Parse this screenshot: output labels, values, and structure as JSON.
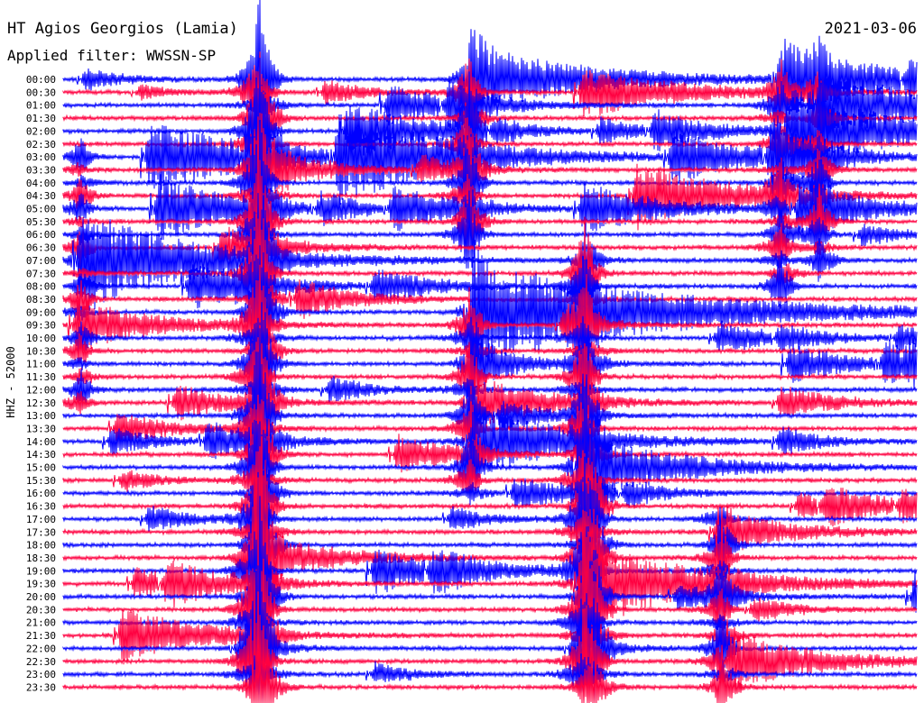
{
  "header": {
    "station": "HT Agios Georgios (Lamia)",
    "filter": "Applied filter: WWSSN-SP",
    "date": "2021-03-06"
  },
  "chart_data": {
    "type": "line",
    "title": "HT Agios Georgios (Lamia)",
    "subtitle": "Applied filter: WWSSN-SP",
    "ylabel": "HHZ - 52000",
    "row_labels": [
      "00:00",
      "00:30",
      "01:00",
      "01:30",
      "02:00",
      "02:30",
      "03:00",
      "03:30",
      "04:00",
      "04:30",
      "05:00",
      "05:30",
      "06:00",
      "06:30",
      "07:00",
      "07:30",
      "08:00",
      "08:30",
      "09:00",
      "09:30",
      "10:00",
      "10:30",
      "11:00",
      "11:30",
      "12:00",
      "12:30",
      "13:00",
      "13:30",
      "14:00",
      "14:30",
      "15:00",
      "15:30",
      "16:00",
      "16:30",
      "17:00",
      "17:30",
      "18:00",
      "18:30",
      "19:00",
      "19:30",
      "20:00",
      "20:30",
      "21:00",
      "21:30",
      "22:00",
      "22:30",
      "23:00",
      "23:30"
    ],
    "trace_colors": [
      "#0000ff",
      "#ff0040"
    ],
    "grid": false
  }
}
